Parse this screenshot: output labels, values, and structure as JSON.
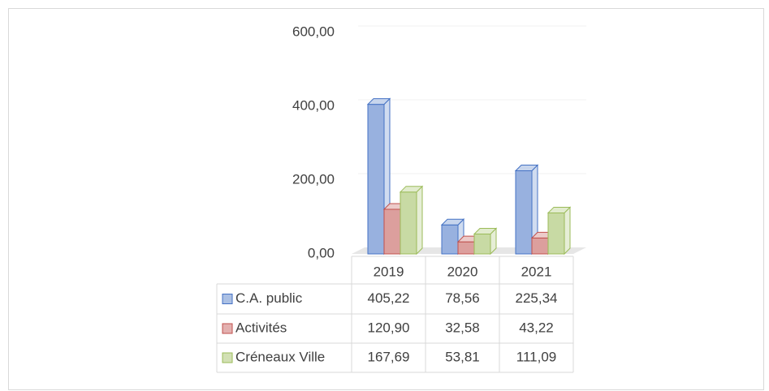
{
  "chart_data": {
    "type": "bar3d",
    "categories": [
      "2019",
      "2020",
      "2021"
    ],
    "series": [
      {
        "name": "C.A. public",
        "color": "#4472c4",
        "values": [
          405.22,
          78.56,
          225.34
        ],
        "value_labels": [
          "405,22",
          "78,56",
          "225,34"
        ]
      },
      {
        "name": "Activités",
        "color": "#c0504d",
        "values": [
          120.9,
          32.58,
          43.22
        ],
        "value_labels": [
          "120,90",
          "32,58",
          "43,22"
        ]
      },
      {
        "name": "Créneaux Ville",
        "color": "#9bbb59",
        "values": [
          167.69,
          53.81,
          111.09
        ],
        "value_labels": [
          "167,69",
          "53,81",
          "111,09"
        ]
      }
    ],
    "ylim": [
      0,
      600
    ],
    "yticks": [
      {
        "value": 0,
        "label": "0,00"
      },
      {
        "value": 200,
        "label": "200,00"
      },
      {
        "value": 400,
        "label": "400,00"
      },
      {
        "value": 600,
        "label": "600,00"
      }
    ],
    "grid": true,
    "data_table": true
  }
}
